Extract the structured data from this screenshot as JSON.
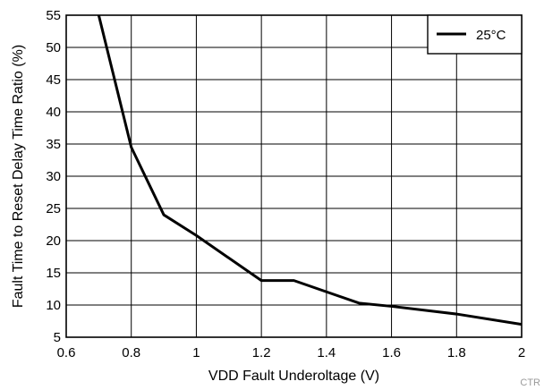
{
  "chart_data": {
    "type": "line",
    "title": "",
    "xlabel": "VDD Fault Underoltage (V)",
    "ylabel": "Fault Time to Reset Delay Time Ratio (%)",
    "xlim": [
      0.6,
      2
    ],
    "ylim": [
      5,
      55
    ],
    "x_ticks": [
      0.6,
      0.8,
      1,
      1.2,
      1.4,
      1.6,
      1.8,
      2
    ],
    "x_tick_labels": [
      "0.6",
      "0.8",
      "1",
      "1.2",
      "1.4",
      "1.6",
      "1.8",
      "2"
    ],
    "y_ticks": [
      5,
      10,
      15,
      20,
      25,
      30,
      35,
      40,
      45,
      50,
      55
    ],
    "y_tick_labels": [
      "5",
      "10",
      "15",
      "20",
      "25",
      "30",
      "35",
      "40",
      "45",
      "50",
      "55"
    ],
    "grid": true,
    "legend_position": "top-right",
    "series": [
      {
        "name": "25°C",
        "color": "#000000",
        "x": [
          0.7,
          0.8,
          0.9,
          1.0,
          1.2,
          1.3,
          1.5,
          1.6,
          1.8,
          2.0
        ],
        "y": [
          55,
          34.5,
          24,
          20.8,
          13.8,
          13.8,
          10.3,
          9.8,
          8.6,
          7.0
        ]
      }
    ]
  },
  "watermark": "CTR"
}
